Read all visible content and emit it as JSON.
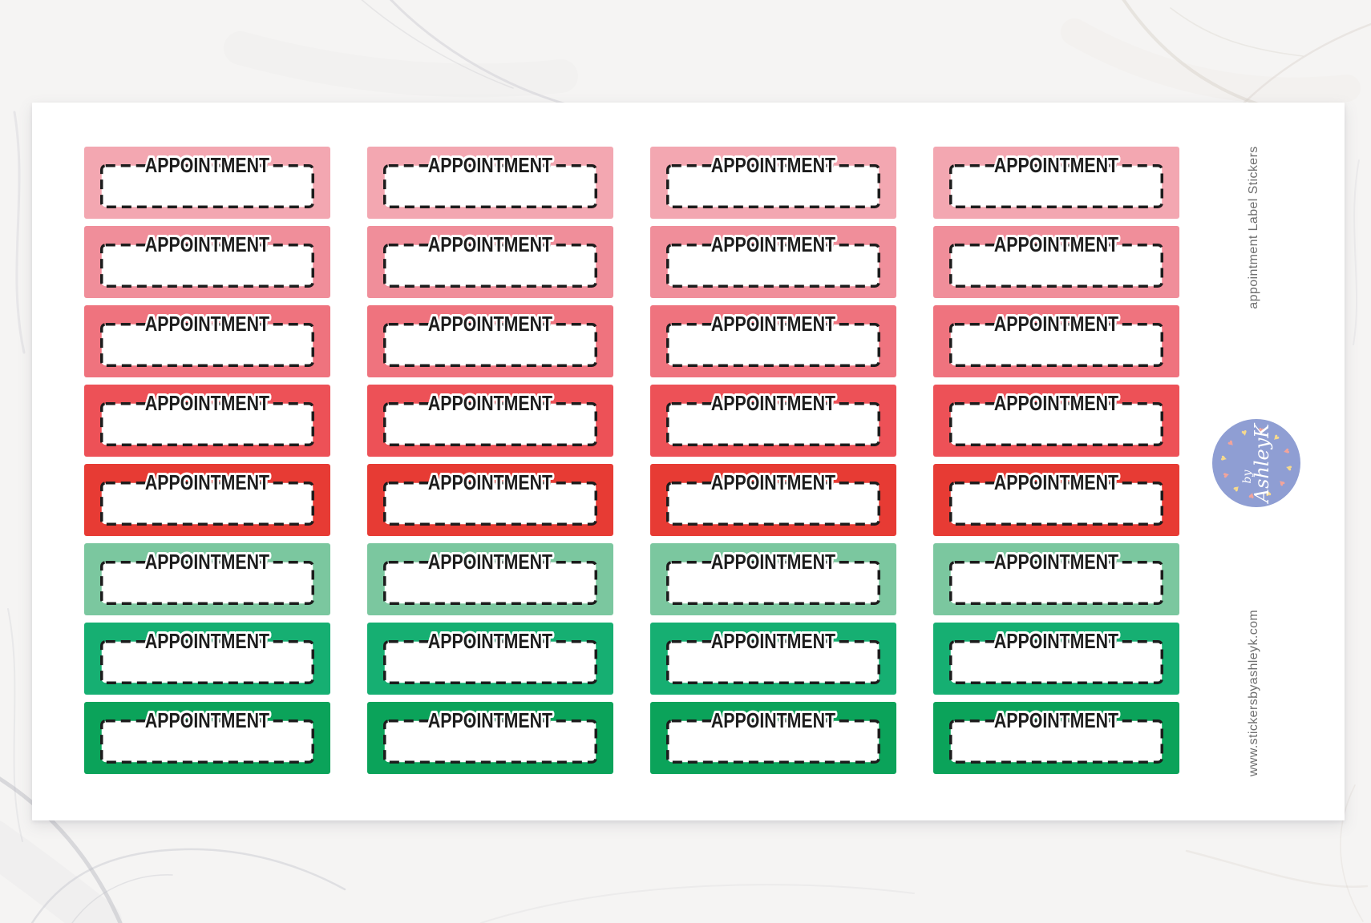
{
  "product": {
    "sticker_label": "APPOINTMENT",
    "side_title": "appointment Label Stickers",
    "website": "www.stickersbyashleyk.com"
  },
  "sheet": {
    "columns": 4,
    "sticker_border_color": "#1c1c1c",
    "sticker_box_fill": "#ffffff",
    "rows": [
      {
        "name": "pink-light",
        "color": "#F3A7B1"
      },
      {
        "name": "pink",
        "color": "#F08E9A"
      },
      {
        "name": "coral-light",
        "color": "#EF737E"
      },
      {
        "name": "coral",
        "color": "#ED5157"
      },
      {
        "name": "red",
        "color": "#E73B34"
      },
      {
        "name": "green-light",
        "color": "#7BC79F"
      },
      {
        "name": "green",
        "color": "#16AF72"
      },
      {
        "name": "green-dark",
        "color": "#0BA35A"
      }
    ]
  },
  "logo": {
    "prefix": "by",
    "name": "AshleyK",
    "circle_color": "#8F9ED3",
    "text_color": "#FFFFFF",
    "heart_colors": [
      "#F5D98D",
      "#F2A49B"
    ],
    "heart_count": 12
  }
}
